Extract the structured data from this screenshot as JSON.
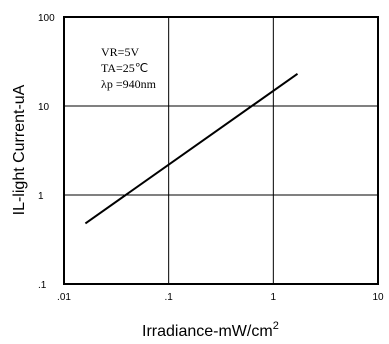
{
  "chart_data": {
    "type": "line",
    "xscale": "log",
    "yscale": "log",
    "xlim": [
      0.01,
      10
    ],
    "ylim": [
      0.1,
      100
    ],
    "xticks": [
      ".01",
      ".1",
      "1",
      "10"
    ],
    "yticks": [
      ".1",
      "1",
      "10",
      "100"
    ],
    "grid": true,
    "ylabel": "IL-light Current-uA",
    "xlabel": "Irradiance-mW/cm",
    "xlabel_sup": "2",
    "annotations": [
      "VR=5V",
      "TA=25℃",
      "λp =940nm"
    ],
    "series": [
      {
        "x": [
          0.016,
          1.7
        ],
        "y": [
          0.48,
          23
        ]
      }
    ]
  }
}
